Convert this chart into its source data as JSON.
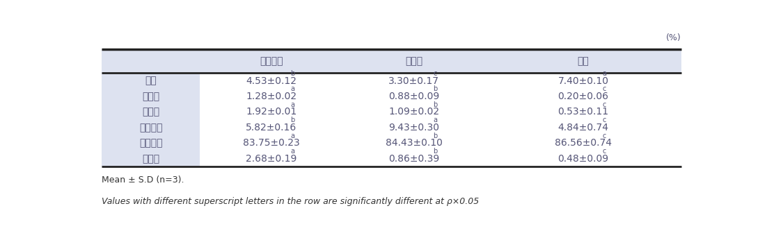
{
  "unit_label": "(%)",
  "header_bg_color": "#dde2f0",
  "row_label_bg_color": "#dde2f0",
  "header_row": [
    "",
    "청소년층",
    "고령층",
    "백미"
  ],
  "rows": [
    {
      "label": "수분",
      "c1": {
        "value": "4.53±0.12",
        "superscript": "b"
      },
      "c2": {
        "value": "3.30±0.17",
        "superscript": "c"
      },
      "c3": {
        "value": "7.40±0.10",
        "superscript": "a"
      }
    },
    {
      "label": "조회분",
      "c1": {
        "value": "1.28±0.02",
        "superscript": "a"
      },
      "c2": {
        "value": "0.88±0.09",
        "superscript": "b"
      },
      "c3": {
        "value": "0.20±0.06",
        "superscript": "c"
      }
    },
    {
      "label": "조지방",
      "c1": {
        "value": "1.92±0.01",
        "superscript": "a"
      },
      "c2": {
        "value": "1.09±0.02",
        "superscript": "b"
      },
      "c3": {
        "value": "0.53±0.11",
        "superscript": "c"
      }
    },
    {
      "label": "조단백질",
      "c1": {
        "value": "5.82±0.16",
        "superscript": "b"
      },
      "c2": {
        "value": "9.43±0.30",
        "superscript": "a"
      },
      "c3": {
        "value": "4.84±0.74",
        "superscript": "c"
      }
    },
    {
      "label": "탄수화물",
      "c1": {
        "value": "83.75±0.23",
        "superscript": "a"
      },
      "c2": {
        "value": "84.43±0.10",
        "superscript": "b"
      },
      "c3": {
        "value": "86.56±0.74",
        "superscript": "c"
      }
    },
    {
      "label": "조섹유",
      "c1": {
        "value": "2.68±0.19",
        "superscript": "a"
      },
      "c2": {
        "value": "0.86±0.39",
        "superscript": "b"
      },
      "c3": {
        "value": "0.48±0.09",
        "superscript": "c"
      }
    }
  ],
  "footnote1": "Mean ± S.D (n=3).",
  "footnote2": "Values with different superscript letters in the row are significantly different at ρ×0.05",
  "border_color": "#222222",
  "header_text_color": "#555577",
  "data_text_color": "#555577",
  "label_text_color": "#555577",
  "footnote_color": "#333333"
}
